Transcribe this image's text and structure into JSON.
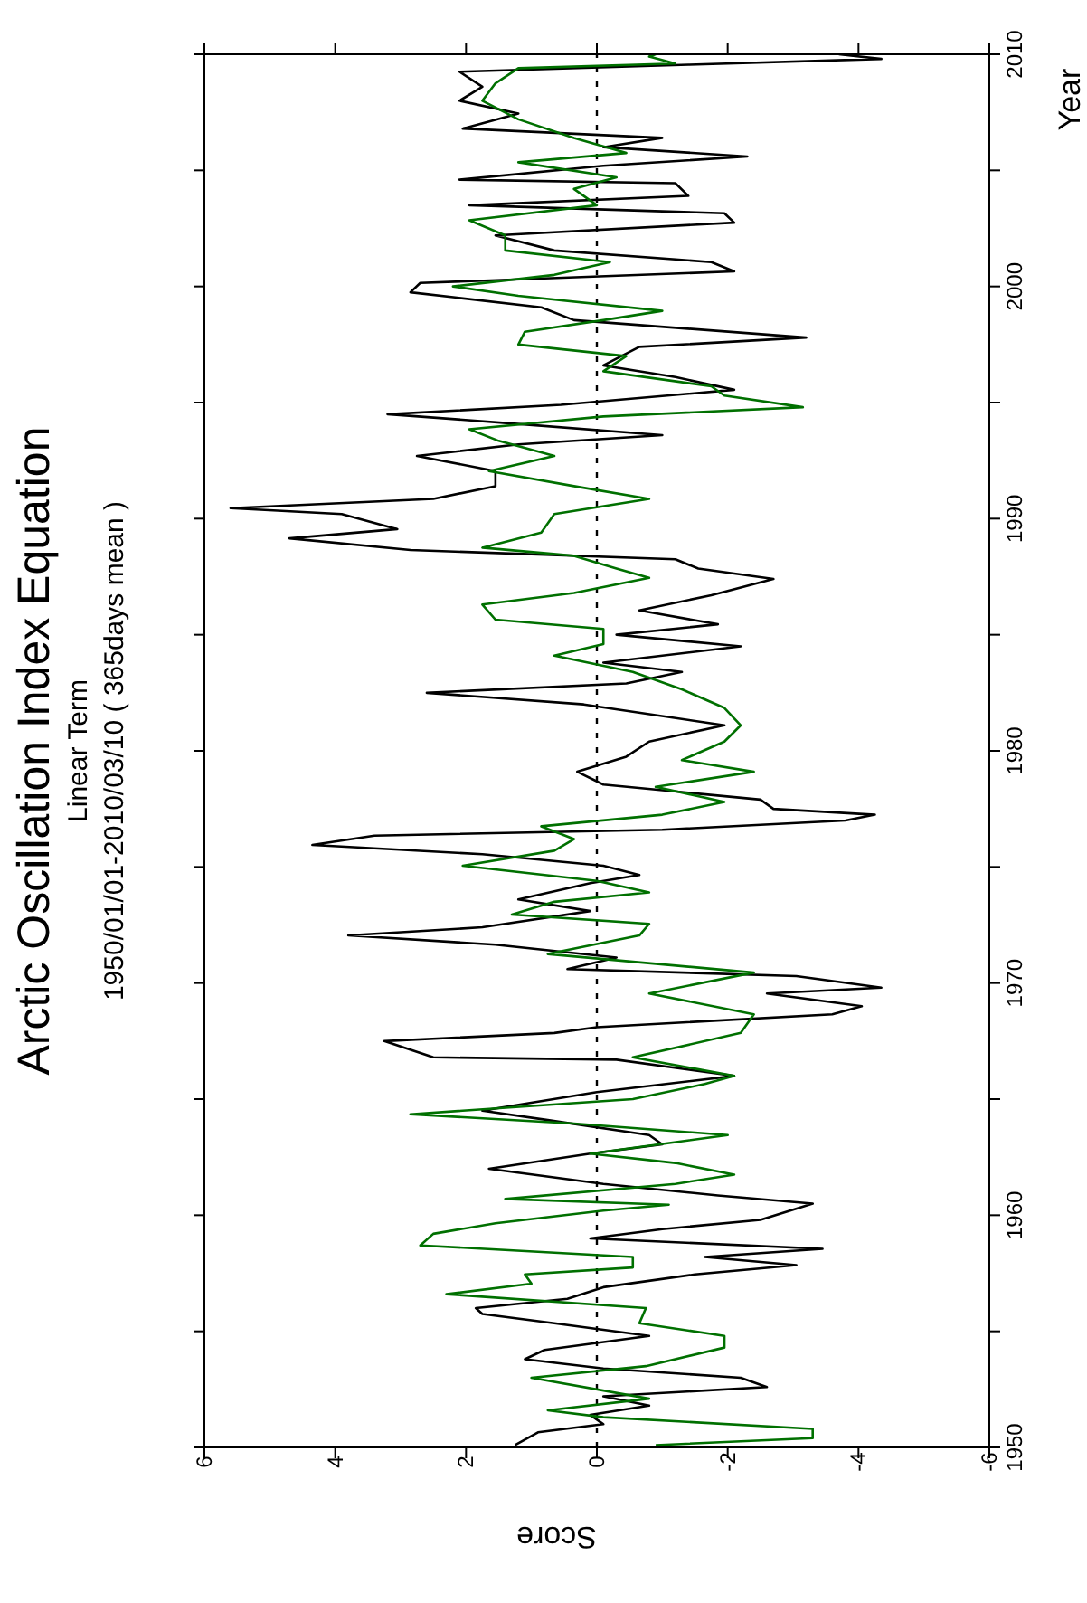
{
  "chart_data": {
    "type": "line",
    "title": "Arctic Oscillation Index Equation",
    "subtitle": "Linear Term",
    "annotations": [
      "1950/01/01-2010/03/10 ( 365days mean )"
    ],
    "xlabel": "Score",
    "ylabel": "Year",
    "xlim": [
      6,
      -6
    ],
    "xticks": [
      6,
      4,
      2,
      0,
      -2,
      -4,
      -6
    ],
    "ylim": [
      1950,
      2010
    ],
    "yticks": [
      1950,
      {
        "value": 1955,
        "label": null
      },
      1960,
      {
        "value": 1965,
        "label": null
      },
      1970,
      {
        "value": 1975,
        "label": null
      },
      1980,
      {
        "value": 1985,
        "label": null
      },
      1990,
      {
        "value": 1995,
        "label": null
      },
      2000,
      {
        "value": 2005,
        "label": null
      },
      2010
    ],
    "marker": "none",
    "line_style": "solid",
    "ref_lines": [
      {
        "axis": "x",
        "value": 0,
        "label": null,
        "line_style": "dotted",
        "color": "#000000"
      }
    ],
    "series": [
      {
        "color": "#000000",
        "values": [
          1950.1,
          1950.65,
          1951.0,
          1951.4,
          1951.8,
          1952.2,
          1952.6,
          1953.0,
          1953.4,
          1953.8,
          1954.2,
          1954.8,
          1955.35,
          1955.75,
          1956.0,
          1956.4,
          1956.9,
          1957.45,
          1957.85,
          1958.2,
          1958.55,
          1959.0,
          1959.4,
          1959.8,
          1960.5,
          1960.85,
          1961.35,
          1962.0,
          1962.65,
          1963.05,
          1963.45,
          1964.1,
          1964.5,
          1965.3,
          1966.0,
          1966.7,
          1966.8,
          1967.5,
          1967.85,
          1968.1,
          1968.65,
          1969.0,
          1969.55,
          1969.8,
          1970.3,
          1970.6,
          1971.1,
          1971.65,
          1972.05,
          1972.4,
          1973.1,
          1973.6,
          1974.3,
          1974.65,
          1975.05,
          1975.55,
          1975.95,
          1976.35,
          1976.6,
          1977.0,
          1977.25,
          1977.5,
          1977.9,
          1978.55,
          1979.1,
          1979.75,
          1980.4,
          1981.1,
          1982.0,
          1982.5,
          1982.9,
          1983.4,
          1983.8,
          1984.5,
          1985.0,
          1985.45,
          1986.05,
          1986.7,
          1987.4,
          1987.85,
          1988.25,
          1988.65,
          1989.15,
          1989.55,
          1990.2,
          1990.45,
          1990.85,
          1991.4,
          1992.05,
          1992.7,
          1993.2,
          1993.6,
          1994.1,
          1994.5,
          1994.9,
          1995.55,
          1996.1,
          1996.6,
          1997.4,
          1997.8,
          1998.55,
          1999.1,
          1999.75,
          2000.15,
          2000.65,
          2001.05,
          2001.55,
          2002.2,
          2002.75,
          2003.15,
          2003.5,
          2003.9,
          2004.45,
          2004.6,
          2005.2,
          2005.6,
          2006.0,
          2006.4,
          2006.8,
          2007.45,
          2008.0,
          2008.6,
          2009.25,
          2009.55,
          2009.8,
          2010.0
        ],
        "x": [
          1.25,
          0.9,
          -0.1,
          0.1,
          -0.8,
          -0.1,
          -2.6,
          -2.2,
          -0.1,
          1.1,
          0.8,
          -0.8,
          0.65,
          1.75,
          1.85,
          0.45,
          -0.1,
          -1.5,
          -3.05,
          -1.65,
          -3.45,
          0.1,
          -1.0,
          -2.5,
          -3.3,
          -1.85,
          -0.1,
          1.65,
          0.1,
          -1.0,
          -0.8,
          0.75,
          1.75,
          0.0,
          -2.1,
          -0.3,
          2.5,
          3.25,
          0.65,
          0.0,
          -3.6,
          -4.05,
          -2.6,
          -4.35,
          -3.05,
          0.45,
          -0.3,
          1.55,
          3.8,
          1.75,
          0.1,
          1.2,
          0.1,
          -0.65,
          -0.1,
          1.75,
          4.35,
          3.4,
          -1.0,
          -3.8,
          -4.25,
          -2.7,
          -2.5,
          -0.1,
          0.3,
          -0.45,
          -0.8,
          -1.95,
          0.2,
          2.6,
          -0.45,
          -1.3,
          -0.1,
          -2.2,
          -0.3,
          -1.85,
          -0.65,
          -1.75,
          -2.7,
          -1.55,
          -1.2,
          2.85,
          4.7,
          3.05,
          3.9,
          5.6,
          2.5,
          1.55,
          1.55,
          2.75,
          1.2,
          -1.0,
          1.3,
          3.2,
          0.55,
          -2.1,
          -1.2,
          -0.1,
          -0.65,
          -3.2,
          0.35,
          0.85,
          2.85,
          2.7,
          -2.1,
          -1.75,
          0.65,
          1.55,
          -2.1,
          -1.95,
          1.95,
          -1.4,
          -1.2,
          2.1,
          -0.1,
          -2.3,
          -0.1,
          -1.0,
          2.05,
          1.2,
          2.1,
          1.75,
          2.1,
          -1.4,
          -4.35,
          -3.7
        ]
      },
      {
        "color": "#007000",
        "values": [
          1950.1,
          1950.4,
          1950.8,
          1951.3,
          1951.6,
          1952.1,
          1953.0,
          1953.5,
          1954.3,
          1954.8,
          1955.35,
          1956.0,
          1956.6,
          1957.05,
          1957.45,
          1957.75,
          1958.2,
          1958.7,
          1959.2,
          1959.65,
          1960.2,
          1960.45,
          1960.7,
          1961.35,
          1961.75,
          1962.25,
          1962.65,
          1963.45,
          1963.95,
          1964.35,
          1965.0,
          1965.65,
          1966.0,
          1966.8,
          1967.85,
          1968.65,
          1969.55,
          1970.45,
          1971.25,
          1972.05,
          1972.55,
          1972.95,
          1973.5,
          1973.9,
          1974.4,
          1975.05,
          1975.7,
          1976.2,
          1976.75,
          1977.25,
          1977.8,
          1978.45,
          1979.1,
          1979.6,
          1980.4,
          1981.1,
          1981.85,
          1982.65,
          1983.4,
          1984.1,
          1984.6,
          1985.25,
          1985.65,
          1986.3,
          1986.8,
          1987.45,
          1987.85,
          1988.4,
          1988.75,
          1989.4,
          1990.2,
          1990.85,
          1991.4,
          1992.05,
          1992.7,
          1993.35,
          1993.85,
          1994.4,
          1994.8,
          1995.3,
          1995.7,
          1996.35,
          1997.0,
          1997.5,
          1998.05,
          1998.55,
          1998.95,
          1999.6,
          2000.0,
          2000.5,
          2001.05,
          2001.55,
          2002.2,
          2002.85,
          2003.5,
          2004.2,
          2004.7,
          2005.35,
          2005.75,
          2006.4,
          2007.2,
          2008.0,
          2008.75,
          2009.4,
          2009.6,
          2009.9,
          2010.0
        ],
        "x": [
          -0.9,
          -3.3,
          -3.3,
          -0.1,
          0.75,
          -0.8,
          1.0,
          -0.75,
          -1.95,
          -1.95,
          -0.65,
          -0.75,
          2.3,
          1.0,
          1.1,
          -0.55,
          -0.55,
          2.7,
          2.5,
          1.55,
          -0.1,
          -1.1,
          1.4,
          -1.2,
          -2.1,
          -1.2,
          0.1,
          -2.0,
          0.35,
          2.85,
          -0.55,
          -1.65,
          -2.1,
          -0.55,
          -2.2,
          -2.4,
          -0.8,
          -2.4,
          0.75,
          -0.65,
          -0.8,
          1.3,
          0.65,
          -0.8,
          0.0,
          2.05,
          0.65,
          0.35,
          0.85,
          -1.0,
          -1.95,
          -0.9,
          -2.4,
          -1.3,
          -1.95,
          -2.2,
          -1.95,
          -1.3,
          -0.55,
          0.65,
          -0.1,
          -0.1,
          1.55,
          1.75,
          0.35,
          -0.8,
          -0.3,
          0.35,
          1.75,
          0.85,
          0.65,
          -0.8,
          0.35,
          1.65,
          0.65,
          1.5,
          1.95,
          -0.1,
          -3.15,
          -1.95,
          -1.75,
          -0.1,
          -0.45,
          1.2,
          1.1,
          -0.1,
          -1.0,
          1.2,
          2.2,
          0.65,
          -0.2,
          1.4,
          1.4,
          1.95,
          0.0,
          0.35,
          -0.3,
          1.2,
          -0.45,
          0.35,
          1.2,
          1.75,
          1.55,
          1.2,
          -1.2,
          -0.8,
          -0.9
        ]
      }
    ]
  }
}
